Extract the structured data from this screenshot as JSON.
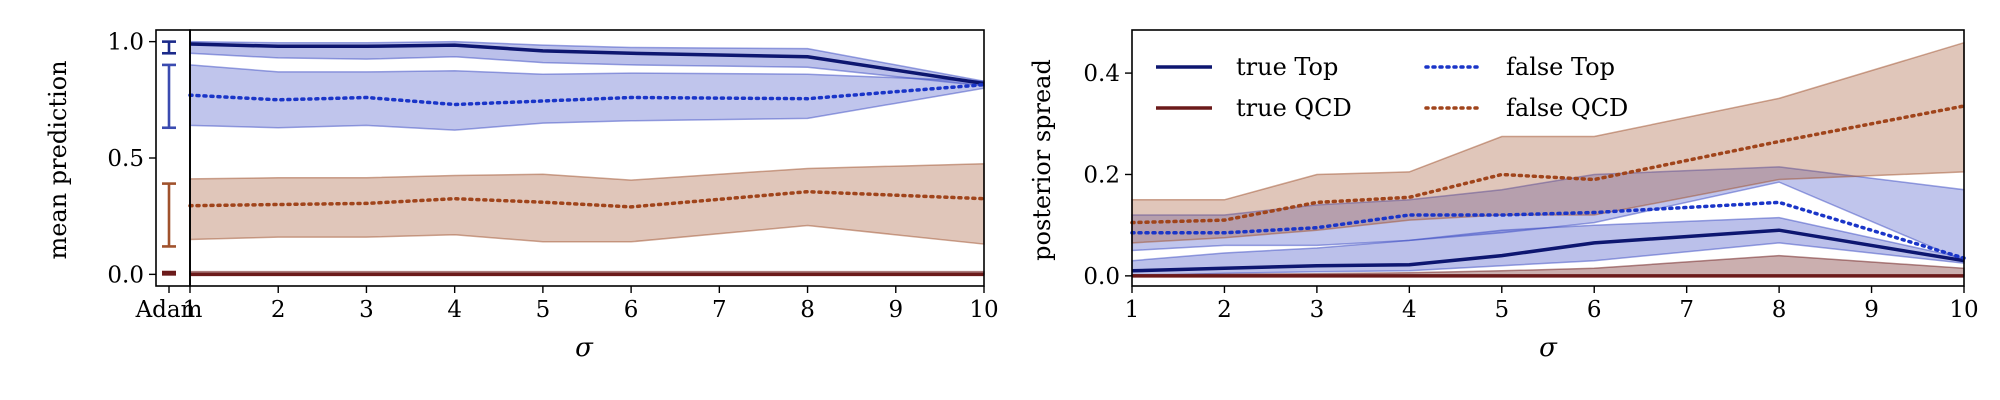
{
  "chart_data": [
    {
      "type": "line",
      "ylabel": "mean prediction",
      "xlabel": "σ",
      "x": [
        1,
        2,
        3,
        4,
        5,
        6,
        8,
        10
      ],
      "xlim": [
        1,
        10
      ],
      "ylim": [
        -0.05,
        1.05
      ],
      "xticks": [
        1,
        2,
        3,
        4,
        5,
        6,
        7,
        8,
        9,
        10
      ],
      "yticks": [
        0.0,
        0.5,
        1.0
      ],
      "ytick_labels": [
        "0.0",
        "0.5",
        "1.0"
      ],
      "adam_label": "Adam",
      "adam_errorbars": [
        {
          "series": "true Top",
          "low": 0.95,
          "high": 1.0,
          "color": "#1b2a8a"
        },
        {
          "series": "false Top",
          "low": 0.63,
          "high": 0.9,
          "color": "#3b4bb0"
        },
        {
          "series": "false QCD",
          "low": 0.12,
          "high": 0.39,
          "color": "#a0522d"
        },
        {
          "series": "true QCD",
          "low": 0.0,
          "high": 0.01,
          "color": "#6b1a1a"
        }
      ],
      "series": [
        {
          "name": "true Top",
          "style": "solid",
          "color": "#0d1670",
          "values": [
            0.99,
            0.98,
            0.98,
            0.985,
            0.96,
            0.95,
            0.935,
            0.82
          ],
          "band_low": [
            0.95,
            0.93,
            0.925,
            0.935,
            0.91,
            0.9,
            0.89,
            0.81
          ],
          "band_high": [
            1.0,
            0.995,
            0.995,
            1.0,
            0.985,
            0.975,
            0.97,
            0.83
          ]
        },
        {
          "name": "false Top",
          "style": "dotted",
          "color": "#1a35c8",
          "values": [
            0.77,
            0.75,
            0.76,
            0.73,
            0.745,
            0.76,
            0.755,
            0.815
          ],
          "band_low": [
            0.64,
            0.63,
            0.64,
            0.62,
            0.65,
            0.66,
            0.67,
            0.8
          ],
          "band_high": [
            0.9,
            0.87,
            0.87,
            0.875,
            0.86,
            0.865,
            0.86,
            0.83
          ]
        },
        {
          "name": "false QCD",
          "style": "dotted",
          "color": "#a0441b",
          "values": [
            0.295,
            0.3,
            0.305,
            0.325,
            0.31,
            0.29,
            0.355,
            0.325
          ],
          "band_low": [
            0.15,
            0.16,
            0.16,
            0.17,
            0.14,
            0.14,
            0.21,
            0.13
          ],
          "band_high": [
            0.41,
            0.415,
            0.415,
            0.425,
            0.43,
            0.405,
            0.455,
            0.475
          ]
        },
        {
          "name": "true QCD",
          "style": "solid",
          "color": "#6b1a1a",
          "values": [
            0.0,
            0.0,
            0.0,
            0.0,
            0.0,
            0.0,
            0.0,
            0.0
          ],
          "band_low": [
            0.0,
            0.0,
            0.0,
            0.0,
            0.0,
            0.0,
            0.0,
            0.0
          ],
          "band_high": [
            0.012,
            0.012,
            0.012,
            0.012,
            0.012,
            0.012,
            0.012,
            0.012
          ]
        }
      ]
    },
    {
      "type": "line",
      "ylabel": "posterior spread",
      "xlabel": "σ",
      "x": [
        1,
        2,
        3,
        4,
        5,
        6,
        8,
        10
      ],
      "xlim": [
        1,
        10
      ],
      "ylim": [
        -0.02,
        0.485
      ],
      "xticks": [
        1,
        2,
        3,
        4,
        5,
        6,
        7,
        8,
        9,
        10
      ],
      "yticks": [
        0.0,
        0.2,
        0.4
      ],
      "ytick_labels": [
        "0.0",
        "0.2",
        "0.4"
      ],
      "legend_position": "top-left",
      "series": [
        {
          "name": "true Top",
          "style": "solid",
          "color": "#0d1670",
          "values": [
            0.01,
            0.015,
            0.02,
            0.022,
            0.04,
            0.065,
            0.09,
            0.03
          ],
          "band_low": [
            0.0,
            0.005,
            0.008,
            0.01,
            0.02,
            0.03,
            0.065,
            0.025
          ],
          "band_high": [
            0.03,
            0.045,
            0.055,
            0.07,
            0.09,
            0.1,
            0.115,
            0.035
          ]
        },
        {
          "name": "true QCD",
          "style": "solid",
          "color": "#6b1a1a",
          "values": [
            0.0,
            0.0,
            0.0,
            0.0,
            0.0,
            0.0,
            0.0,
            0.0
          ],
          "band_low": [
            0.0,
            0.0,
            0.0,
            0.0,
            0.0,
            0.0,
            0.0,
            0.0
          ],
          "band_high": [
            0.002,
            0.003,
            0.004,
            0.006,
            0.01,
            0.015,
            0.04,
            0.015
          ]
        },
        {
          "name": "false Top",
          "style": "dotted",
          "color": "#1a35c8",
          "values": [
            0.085,
            0.085,
            0.095,
            0.12,
            0.12,
            0.125,
            0.145,
            0.035
          ],
          "band_low": [
            0.05,
            0.06,
            0.06,
            0.07,
            0.085,
            0.105,
            0.185,
            0.03
          ],
          "band_high": [
            0.12,
            0.12,
            0.14,
            0.15,
            0.17,
            0.2,
            0.215,
            0.17
          ]
        },
        {
          "name": "false QCD",
          "style": "dotted",
          "color": "#a0441b",
          "values": [
            0.105,
            0.11,
            0.145,
            0.155,
            0.2,
            0.19,
            0.265,
            0.335
          ],
          "band_low": [
            0.065,
            0.075,
            0.09,
            0.11,
            0.12,
            0.12,
            0.19,
            0.205
          ],
          "band_high": [
            0.15,
            0.15,
            0.2,
            0.205,
            0.275,
            0.275,
            0.35,
            0.46
          ]
        }
      ]
    }
  ]
}
